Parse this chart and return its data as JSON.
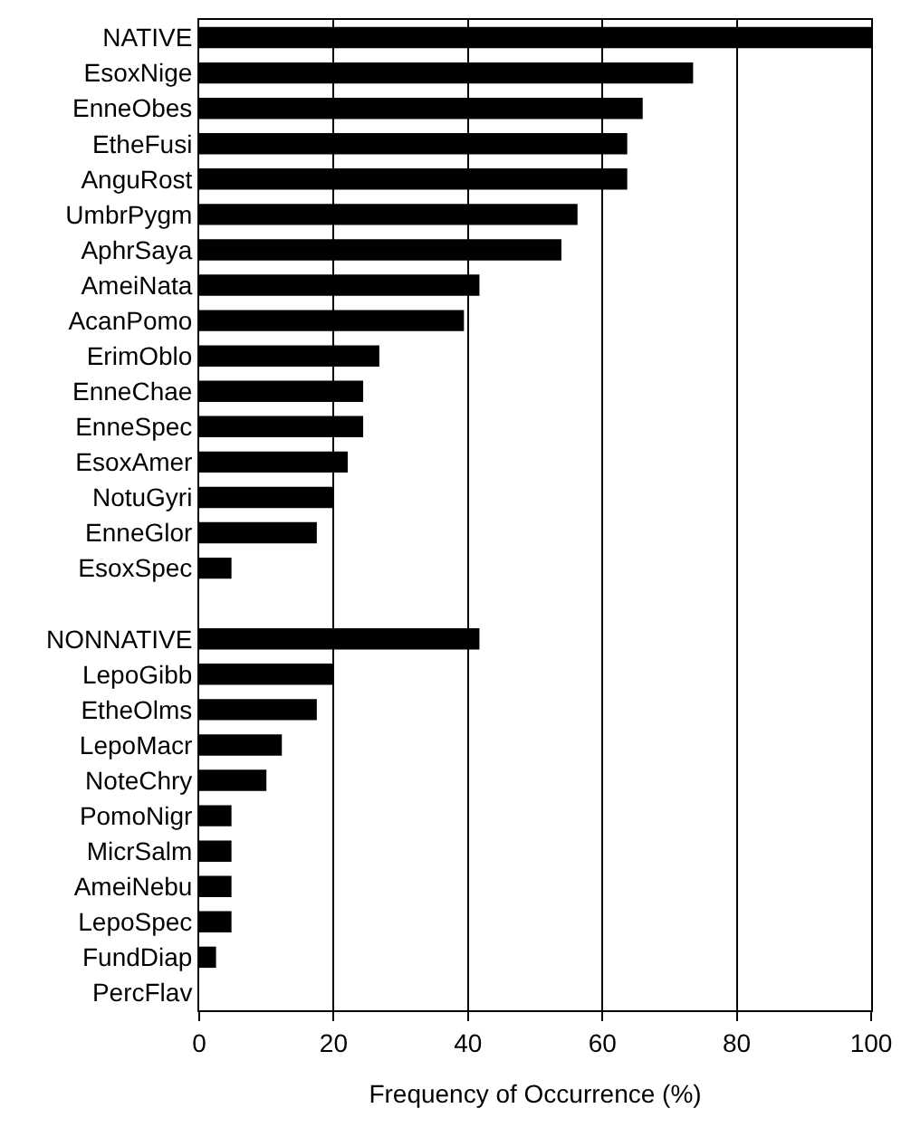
{
  "chart_data": {
    "type": "bar",
    "orientation": "horizontal",
    "xlabel": "Frequency of Occurrence (%)",
    "categories": [
      "NATIVE",
      "EsoxNige",
      "EnneObes",
      "EtheFusi",
      "AnguRost",
      "UmbrPygm",
      "AphrSaya",
      "AmeiNata",
      "AcanPomo",
      "ErimOblo",
      "EnneChae",
      "EnneSpec",
      "EsoxAmer",
      "NotuGyri",
      "EnneGlor",
      "EsoxSpec",
      null,
      "NONNATIVE",
      "LepoGibb",
      "EtheOlms",
      "LepoMacr",
      "NoteChry",
      "PomoNigr",
      "MicrSalm",
      "AmeiNebu",
      "LepoSpec",
      "FundDiap",
      "PercFlav"
    ],
    "values": [
      100,
      73.5,
      66,
      63.7,
      63.7,
      56.3,
      53.9,
      41.7,
      39.4,
      26.8,
      24.4,
      24.4,
      22.1,
      20,
      17.5,
      4.8,
      null,
      41.7,
      20,
      17.5,
      12.3,
      10,
      4.8,
      4.8,
      4.8,
      4.8,
      2.5,
      0
    ],
    "color": "#000000",
    "xlim": [
      0,
      100
    ],
    "xticks": [
      0,
      20,
      40,
      60,
      80,
      100
    ],
    "grid": "x"
  }
}
